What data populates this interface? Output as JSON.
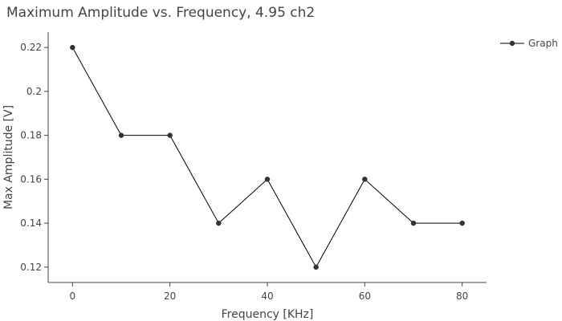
{
  "chart_data": {
    "type": "line",
    "title": "Maximum Amplitude vs. Frequency, 4.95 ch2",
    "xlabel": "Frequency [KHz]",
    "ylabel": "Max Amplitude [V]",
    "xlim": [
      -5,
      85
    ],
    "ylim": [
      0.113,
      0.227
    ],
    "xticks": [
      0,
      20,
      40,
      60,
      80
    ],
    "yticks": [
      0.12,
      0.14,
      0.16,
      0.18,
      0.2,
      0.22
    ],
    "xtick_labels": [
      "0",
      "20",
      "40",
      "60",
      "80"
    ],
    "ytick_labels": [
      "0.12",
      "0.14",
      "0.16",
      "0.18",
      "0.2",
      "0.22"
    ],
    "grid": false,
    "legend_position": "top-right",
    "series": [
      {
        "name": "Graph",
        "color": "#000000",
        "marker_color": "#333333",
        "x": [
          0,
          10,
          20,
          30,
          40,
          50,
          60,
          70,
          80
        ],
        "y": [
          0.22,
          0.18,
          0.18,
          0.14,
          0.16,
          0.12,
          0.16,
          0.14,
          0.14
        ]
      }
    ]
  }
}
